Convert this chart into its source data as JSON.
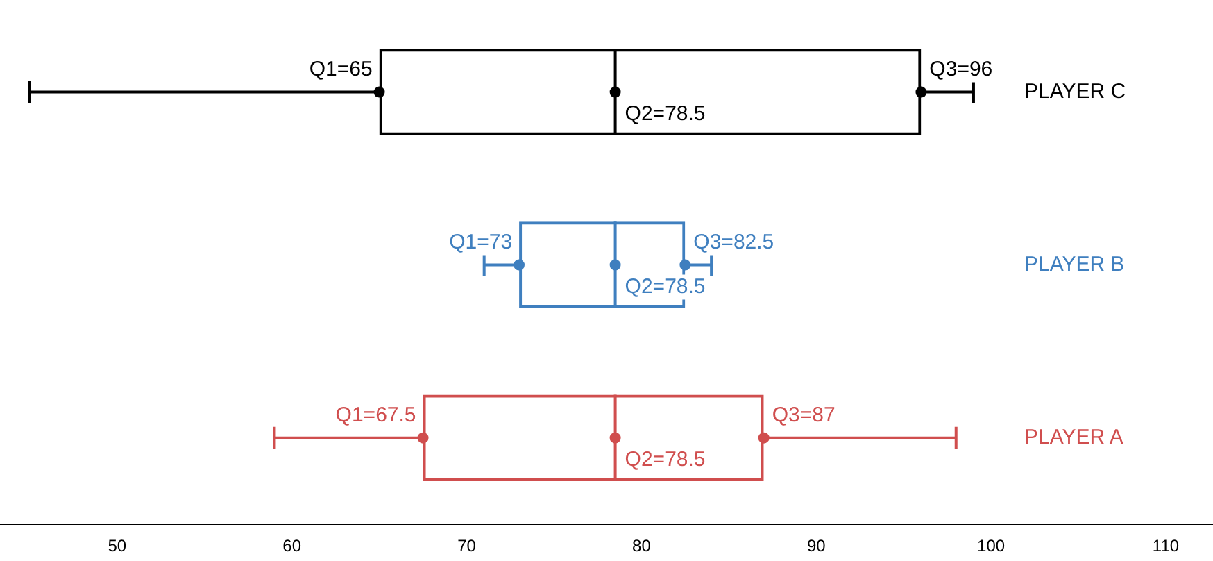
{
  "chart_data": {
    "type": "box",
    "orientation": "horizontal",
    "categories": [
      "PLAYER C",
      "PLAYER B",
      "PLAYER A"
    ],
    "colors": [
      "#000000",
      "#3f7fbf",
      "#d04e4e"
    ],
    "boxes": [
      {
        "low": 45,
        "q1": 65,
        "median": 78.5,
        "q3": 96,
        "high": 99
      },
      {
        "low": 71,
        "q1": 73,
        "median": 78.5,
        "q3": 82.5,
        "high": 84
      },
      {
        "low": 59,
        "q1": 67.5,
        "median": 78.5,
        "q3": 87,
        "high": 98
      }
    ],
    "xlim": [
      43.3,
      112.7
    ],
    "xticks": [
      50,
      60,
      70,
      80,
      90,
      100,
      110
    ],
    "grid": false,
    "legend": false,
    "marker": "circle",
    "annotations": [
      {
        "text": "Q1=65",
        "x": 65,
        "y": "PLAYER C"
      },
      {
        "text": "Q2=78.5",
        "x": 78.5,
        "y": "PLAYER C"
      },
      {
        "text": "Q3=96",
        "x": 96,
        "y": "PLAYER C"
      },
      {
        "text": "Q1=73",
        "x": 73,
        "y": "PLAYER B"
      },
      {
        "text": "Q2=78.5",
        "x": 78.5,
        "y": "PLAYER B"
      },
      {
        "text": "Q3=82.5",
        "x": 82.5,
        "y": "PLAYER B"
      },
      {
        "text": "Q1=67.5",
        "x": 67.5,
        "y": "PLAYER A"
      },
      {
        "text": "Q2=78.5",
        "x": 78.5,
        "y": "PLAYER A"
      },
      {
        "text": "Q3=87",
        "x": 87,
        "y": "PLAYER A"
      }
    ]
  }
}
